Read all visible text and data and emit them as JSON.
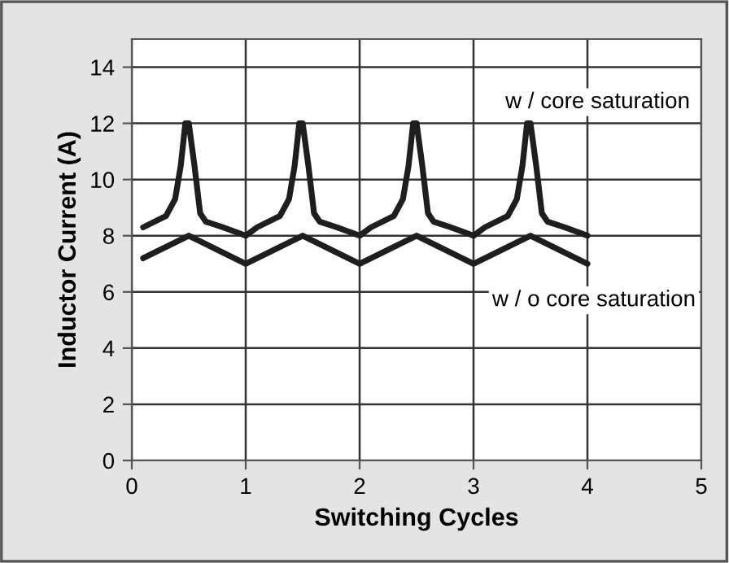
{
  "chart_data": {
    "type": "line",
    "xlabel": "Switching Cycles",
    "ylabel": "Inductor Current (A)",
    "xlim": [
      0,
      5
    ],
    "xticks": [
      0,
      1,
      2,
      3,
      4,
      5
    ],
    "ylim": [
      0,
      15
    ],
    "yticks": [
      0,
      2,
      4,
      6,
      8,
      10,
      12,
      14
    ],
    "grid": true,
    "legend": false,
    "marker": "none",
    "line_style": "solid",
    "series": [
      {
        "color": "#1e1e1e",
        "x": [
          0.1,
          0.3,
          0.38,
          0.43,
          0.47,
          0.5,
          0.55,
          0.6,
          0.65,
          0.8,
          1.0,
          1.1,
          1.3,
          1.38,
          1.43,
          1.47,
          1.5,
          1.55,
          1.6,
          1.65,
          1.8,
          2.0,
          2.1,
          2.3,
          2.38,
          2.43,
          2.47,
          2.5,
          2.55,
          2.6,
          2.65,
          2.8,
          3.0,
          3.1,
          3.3,
          3.38,
          3.43,
          3.47,
          3.5,
          3.55,
          3.6,
          3.65,
          3.8,
          4.0
        ],
        "values": [
          8.3,
          8.7,
          9.3,
          10.5,
          12,
          12,
          10.5,
          8.8,
          8.5,
          8.3,
          8.0,
          8.3,
          8.7,
          9.3,
          10.5,
          12,
          12,
          10.5,
          8.8,
          8.5,
          8.3,
          8.0,
          8.3,
          8.7,
          9.3,
          10.5,
          12,
          12,
          10.5,
          8.8,
          8.5,
          8.3,
          8.0,
          8.3,
          8.7,
          9.3,
          10.5,
          12,
          12,
          10.5,
          8.8,
          8.5,
          8.3,
          8.0
        ]
      },
      {
        "color": "#1e1e1e",
        "x": [
          0.1,
          0.3,
          0.5,
          0.75,
          1.0,
          1.25,
          1.5,
          1.75,
          2.0,
          2.25,
          2.5,
          2.75,
          3.0,
          3.25,
          3.5,
          3.75,
          4.0
        ],
        "values": [
          7.2,
          7.6,
          8.0,
          7.5,
          7.0,
          7.5,
          8.0,
          7.5,
          7.0,
          7.5,
          8.0,
          7.5,
          7.0,
          7.5,
          8.0,
          7.5,
          7.0
        ]
      }
    ],
    "annotations": [
      "w / core saturation",
      "w / o core saturation"
    ]
  }
}
